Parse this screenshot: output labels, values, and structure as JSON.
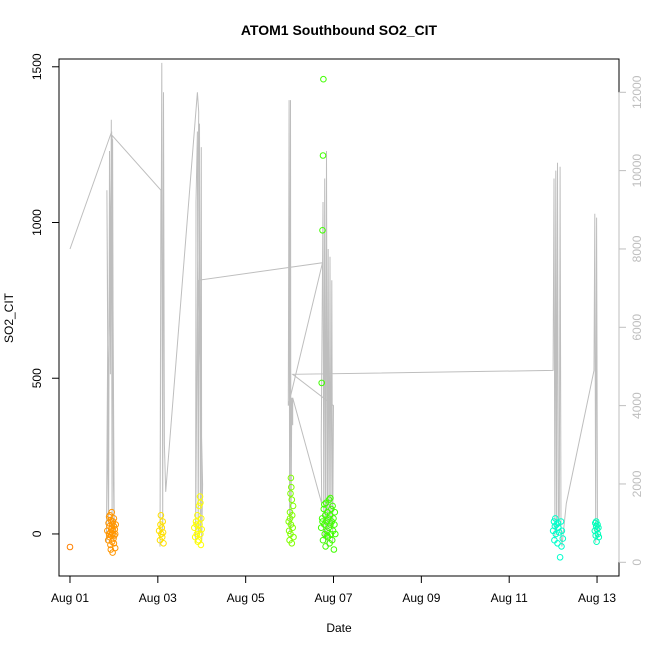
{
  "chart_data": {
    "type": "scatter",
    "title": "ATOM1 Southbound SO2_CIT",
    "xlabel": "Date",
    "ylabel": "SO2_CIT",
    "x_ticks": [
      "Aug 01",
      "Aug 03",
      "Aug 05",
      "Aug 07",
      "Aug 09",
      "Aug 11",
      "Aug 13"
    ],
    "x_tick_days": [
      1,
      3,
      5,
      7,
      9,
      11,
      13
    ],
    "xlim_days": [
      0.75,
      13.5
    ],
    "y_ticks": [
      0,
      500,
      1000,
      1500
    ],
    "ylim": [
      -135,
      1525
    ],
    "y2_ticks": [
      0,
      2000,
      4000,
      6000,
      8000,
      10000,
      12000
    ],
    "y2lim": [
      -350,
      12850
    ],
    "colors": {
      "secondary_line": "#bebebe",
      "axis": "#000000",
      "right_axis": "#bebebe",
      "aug01": "#ff8000",
      "aug02": "#ff9500",
      "aug03": "#ffe000",
      "aug04": "#ffff00",
      "aug06": "#80ff00",
      "aug07": "#40ff00",
      "aug12": "#00ffcc",
      "aug13": "#00ffbb"
    },
    "series": [
      {
        "color_key": "aug01",
        "points": [
          [
            1.0,
            -42
          ]
        ]
      },
      {
        "color_key": "aug02",
        "points": [
          [
            1.85,
            10
          ],
          [
            1.87,
            -20
          ],
          [
            1.88,
            35
          ],
          [
            1.89,
            0
          ],
          [
            1.9,
            -10
          ],
          [
            1.9,
            25
          ],
          [
            1.91,
            60
          ],
          [
            1.92,
            5
          ],
          [
            1.92,
            -35
          ],
          [
            1.93,
            45
          ],
          [
            1.94,
            15
          ],
          [
            1.94,
            -5
          ],
          [
            1.95,
            70
          ],
          [
            1.95,
            20
          ],
          [
            1.96,
            -25
          ],
          [
            1.96,
            30
          ],
          [
            1.97,
            0
          ],
          [
            1.97,
            -60
          ],
          [
            1.98,
            40
          ],
          [
            1.98,
            10
          ],
          [
            1.99,
            -15
          ],
          [
            2.0,
            25
          ],
          [
            2.0,
            50
          ],
          [
            2.01,
            -5
          ],
          [
            2.02,
            15
          ],
          [
            2.03,
            0
          ],
          [
            2.03,
            -45
          ],
          [
            2.04,
            30
          ],
          [
            1.89,
            55
          ],
          [
            1.93,
            -50
          ],
          [
            2.0,
            -30
          ]
        ]
      },
      {
        "color_key": "aug03",
        "points": [
          [
            3.03,
            10
          ],
          [
            3.05,
            -20
          ],
          [
            3.06,
            30
          ],
          [
            3.07,
            60
          ],
          [
            3.08,
            0
          ],
          [
            3.09,
            20
          ],
          [
            3.1,
            -10
          ],
          [
            3.11,
            40
          ],
          [
            3.12,
            5
          ],
          [
            3.13,
            -30
          ]
        ]
      },
      {
        "color_key": "aug04",
        "points": [
          [
            3.83,
            20
          ],
          [
            3.85,
            -10
          ],
          [
            3.87,
            40
          ],
          [
            3.89,
            0
          ],
          [
            3.9,
            60
          ],
          [
            3.92,
            10
          ],
          [
            3.93,
            -20
          ],
          [
            3.94,
            90
          ],
          [
            3.95,
            30
          ],
          [
            3.96,
            120
          ],
          [
            3.97,
            0
          ],
          [
            3.98,
            -35
          ],
          [
            3.99,
            50
          ],
          [
            4.0,
            15
          ],
          [
            3.88,
            30
          ],
          [
            3.91,
            -25
          ],
          [
            3.97,
            100
          ]
        ]
      },
      {
        "color_key": "aug06",
        "points": [
          [
            5.98,
            40
          ],
          [
            5.99,
            10
          ],
          [
            6.0,
            -20
          ],
          [
            6.01,
            70
          ],
          [
            6.02,
            130
          ],
          [
            6.02,
            0
          ],
          [
            6.03,
            180
          ],
          [
            6.03,
            30
          ],
          [
            6.04,
            150
          ],
          [
            6.05,
            -30
          ],
          [
            6.06,
            60
          ],
          [
            6.07,
            20
          ],
          [
            6.08,
            90
          ],
          [
            6.09,
            -10
          ],
          [
            6.01,
            50
          ],
          [
            6.05,
            110
          ]
        ]
      },
      {
        "color_key": "aug07",
        "points": [
          [
            6.73,
            485
          ],
          [
            6.75,
            975
          ],
          [
            6.76,
            1215
          ],
          [
            6.77,
            1460
          ],
          [
            6.72,
            20
          ],
          [
            6.74,
            50
          ],
          [
            6.76,
            -20
          ],
          [
            6.78,
            80
          ],
          [
            6.79,
            30
          ],
          [
            6.8,
            0
          ],
          [
            6.81,
            60
          ],
          [
            6.82,
            -40
          ],
          [
            6.83,
            100
          ],
          [
            6.84,
            40
          ],
          [
            6.85,
            10
          ],
          [
            6.86,
            70
          ],
          [
            6.87,
            -10
          ],
          [
            6.88,
            50
          ],
          [
            6.89,
            20
          ],
          [
            6.9,
            110
          ],
          [
            6.91,
            -30
          ],
          [
            6.92,
            60
          ],
          [
            6.93,
            30
          ],
          [
            6.94,
            0
          ],
          [
            6.95,
            80
          ],
          [
            6.96,
            40
          ],
          [
            6.97,
            -20
          ],
          [
            6.98,
            90
          ],
          [
            6.99,
            10
          ],
          [
            7.0,
            50
          ],
          [
            7.01,
            -50
          ],
          [
            7.02,
            30
          ],
          [
            7.03,
            70
          ],
          [
            7.04,
            0
          ],
          [
            6.75,
            40
          ],
          [
            6.79,
            95
          ],
          [
            6.86,
            -5
          ],
          [
            6.93,
            115
          ]
        ]
      },
      {
        "color_key": "aug12",
        "points": [
          [
            12.0,
            10
          ],
          [
            12.02,
            40
          ],
          [
            12.03,
            -20
          ],
          [
            12.05,
            50
          ],
          [
            12.06,
            0
          ],
          [
            12.08,
            30
          ],
          [
            12.1,
            -30
          ],
          [
            12.12,
            20
          ],
          [
            12.14,
            5
          ],
          [
            12.16,
            -75
          ],
          [
            12.18,
            40
          ],
          [
            12.2,
            10
          ],
          [
            12.22,
            -15
          ],
          [
            12.04,
            25
          ],
          [
            12.11,
            35
          ],
          [
            12.19,
            -40
          ]
        ]
      },
      {
        "color_key": "aug13",
        "points": [
          [
            12.95,
            10
          ],
          [
            12.96,
            35
          ],
          [
            12.97,
            -5
          ],
          [
            12.98,
            25
          ],
          [
            12.99,
            -25
          ],
          [
            13.0,
            15
          ],
          [
            13.01,
            30
          ],
          [
            13.02,
            0
          ],
          [
            13.03,
            20
          ],
          [
            13.04,
            -10
          ],
          [
            12.98,
            40
          ]
        ]
      }
    ],
    "secondary_series": {
      "axis": "right",
      "color_key": "secondary_line",
      "points": [
        [
          1.0,
          8000
        ],
        [
          1.95,
          11000
        ],
        [
          1.83,
          500
        ],
        [
          1.86,
          6000
        ],
        [
          1.84,
          9500
        ],
        [
          1.88,
          1000
        ],
        [
          1.9,
          10500
        ],
        [
          1.92,
          4800
        ],
        [
          1.94,
          11300
        ],
        [
          1.96,
          900
        ],
        [
          1.97,
          10800
        ],
        [
          1.99,
          2000
        ],
        [
          2.01,
          600
        ],
        [
          1.96,
          10900
        ],
        [
          3.07,
          9500
        ],
        [
          3.05,
          400
        ],
        [
          3.09,
          12750
        ],
        [
          3.11,
          800
        ],
        [
          3.13,
          12000
        ],
        [
          3.15,
          3000
        ],
        [
          3.18,
          1800
        ],
        [
          3.9,
          12000
        ],
        [
          3.93,
          11500
        ],
        [
          3.86,
          500
        ],
        [
          3.87,
          9200
        ],
        [
          3.9,
          11000
        ],
        [
          3.92,
          600
        ],
        [
          3.95,
          11200
        ],
        [
          3.97,
          800
        ],
        [
          3.99,
          10600
        ],
        [
          4.0,
          500
        ],
        [
          4.02,
          2000
        ],
        [
          3.92,
          7200
        ],
        [
          6.75,
          7650
        ],
        [
          5.97,
          4000
        ],
        [
          5.99,
          11800
        ],
        [
          6.0,
          800
        ],
        [
          6.02,
          11800
        ],
        [
          6.03,
          600
        ],
        [
          6.05,
          4200
        ],
        [
          6.07,
          3500
        ],
        [
          6.07,
          4200
        ],
        [
          6.73,
          1500
        ],
        [
          6.72,
          3000
        ],
        [
          6.76,
          9200
        ],
        [
          6.78,
          600
        ],
        [
          6.8,
          9800
        ],
        [
          6.82,
          500
        ],
        [
          6.84,
          10500
        ],
        [
          6.86,
          400
        ],
        [
          6.88,
          8000
        ],
        [
          6.9,
          700
        ],
        [
          6.92,
          7800
        ],
        [
          6.94,
          900
        ],
        [
          6.96,
          7200
        ],
        [
          6.98,
          500
        ],
        [
          7.0,
          4000
        ],
        [
          6.07,
          4800
        ],
        [
          12.0,
          4900
        ],
        [
          12.02,
          9800
        ],
        [
          12.04,
          600
        ],
        [
          12.06,
          10000
        ],
        [
          12.08,
          700
        ],
        [
          12.1,
          10200
        ],
        [
          12.12,
          900
        ],
        [
          12.14,
          1200
        ],
        [
          12.16,
          10100
        ],
        [
          12.18,
          800
        ],
        [
          12.2,
          400
        ],
        [
          12.3,
          1500
        ],
        [
          12.93,
          4900
        ],
        [
          12.95,
          8900
        ],
        [
          12.97,
          500
        ],
        [
          12.99,
          8800
        ],
        [
          13.01,
          600
        ],
        [
          13.03,
          1000
        ]
      ]
    }
  }
}
